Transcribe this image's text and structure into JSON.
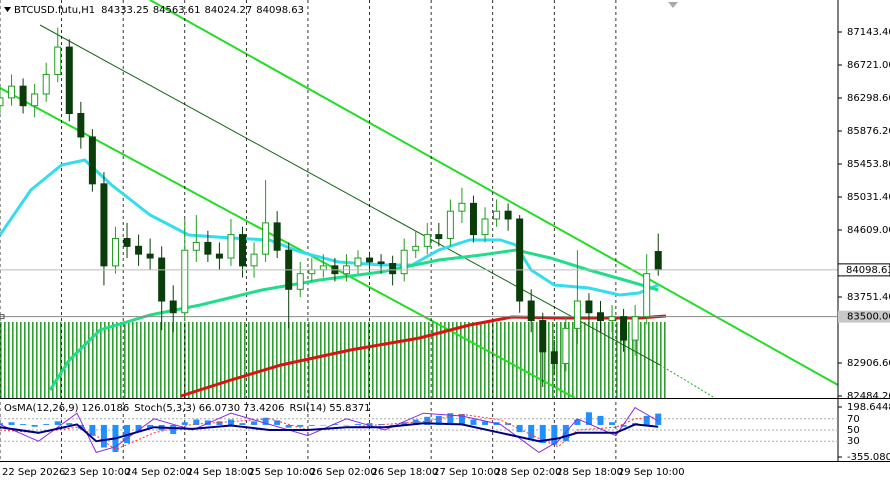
{
  "chart_data": {
    "type": "candlestick",
    "symbol": "BTCUSD.futu,H1",
    "x": [
      0,
      3,
      6,
      9,
      12,
      15,
      18,
      21,
      24,
      27,
      30,
      33,
      36,
      39,
      42,
      45,
      48,
      51,
      54,
      57,
      60,
      63,
      66,
      69,
      72,
      75,
      78,
      81,
      84,
      87,
      90,
      93,
      96,
      99,
      102,
      105,
      108,
      111,
      114,
      117,
      120,
      123,
      126,
      129,
      132,
      135,
      138,
      141,
      144,
      147,
      150,
      153,
      156,
      159,
      162,
      165,
      168,
      171
    ],
    "open": [
      86200,
      86300,
      86450,
      86200,
      86350,
      86600,
      86950,
      86100,
      85800,
      85200,
      84150,
      84500,
      84400,
      84300,
      84250,
      83700,
      83550,
      84350,
      84450,
      84300,
      84250,
      84550,
      84150,
      84300,
      84700,
      84350,
      83850,
      84050,
      84100,
      84150,
      84050,
      84150,
      84250,
      84200,
      84180,
      84050,
      84350,
      84400,
      84550,
      84500,
      84850,
      84950,
      84550,
      84750,
      84850,
      84750,
      83700,
      83450,
      83050,
      82900,
      83350,
      83700,
      83550,
      83450,
      83500,
      83200,
      83500,
      84333.25
    ],
    "high": [
      86450,
      86600,
      86550,
      86480,
      86750,
      87200,
      87050,
      86250,
      85900,
      85350,
      84650,
      84700,
      84550,
      84500,
      84400,
      83900,
      84750,
      84800,
      84600,
      84450,
      84750,
      84650,
      84450,
      85250,
      84850,
      84450,
      84200,
      84250,
      84300,
      84250,
      84300,
      84350,
      84330,
      84300,
      84280,
      84500,
      84600,
      84700,
      84700,
      85000,
      85150,
      85050,
      84900,
      85000,
      84950,
      84800,
      83850,
      83550,
      83200,
      83500,
      84350,
      83800,
      83700,
      83650,
      83600,
      83650,
      84300,
      84563.61
    ],
    "low": [
      86100,
      86200,
      86100,
      86050,
      86250,
      86500,
      86000,
      85650,
      85100,
      83900,
      84050,
      84250,
      84150,
      84100,
      83330,
      83300,
      83450,
      84200,
      84200,
      84100,
      84150,
      84000,
      84000,
      84200,
      84250,
      83350,
      83750,
      83950,
      84000,
      83950,
      83950,
      84050,
      84100,
      84050,
      83900,
      83950,
      84250,
      84300,
      84400,
      84400,
      84700,
      84450,
      84450,
      84650,
      84600,
      83550,
      83300,
      82600,
      82750,
      82800,
      83150,
      83400,
      83300,
      83300,
      83050,
      83000,
      83400,
      84024.27
    ],
    "close": [
      86300,
      86450,
      86200,
      86350,
      86600,
      86950,
      86100,
      85800,
      85200,
      84150,
      84500,
      84400,
      84300,
      84250,
      83700,
      83550,
      84350,
      84450,
      84300,
      84250,
      84550,
      84150,
      84300,
      84700,
      84350,
      83850,
      84050,
      84100,
      84150,
      84050,
      84150,
      84250,
      84200,
      84180,
      84050,
      84350,
      84400,
      84550,
      84500,
      84850,
      84950,
      84550,
      84750,
      84850,
      84750,
      83700,
      83450,
      83050,
      82900,
      83350,
      83700,
      83550,
      83450,
      83500,
      83200,
      83500,
      84050,
      84098.63
    ],
    "bull_color": "#1f9e1f",
    "bear_color": "#0b3d0b",
    "xlim": [
      0,
      217.7
    ],
    "xticks": [
      {
        "value": 0,
        "label": "22 Sep 2026"
      },
      {
        "value": 16,
        "label": "23 Sep 10:00"
      },
      {
        "value": 32,
        "label": "24 Sep 02:00"
      },
      {
        "value": 48,
        "label": "24 Sep 18:00"
      },
      {
        "value": 64,
        "label": "25 Sep 10:00"
      },
      {
        "value": 80,
        "label": "26 Sep 02:00"
      },
      {
        "value": 96,
        "label": "26 Sep 18:00"
      },
      {
        "value": 112,
        "label": "27 Sep 10:00"
      },
      {
        "value": 128,
        "label": "28 Sep 02:00"
      },
      {
        "value": 144,
        "label": "28 Sep 18:00"
      },
      {
        "value": 160,
        "label": "29 Sep 10:00"
      }
    ],
    "ylim": [
      82458.6,
      87553
    ],
    "yticks": [
      {
        "value": 87143.4,
        "label": "87143.40"
      },
      {
        "value": 86721,
        "label": "86721.00"
      },
      {
        "value": 86298.6,
        "label": "86298.60"
      },
      {
        "value": 85876.2,
        "label": "85876.20"
      },
      {
        "value": 85453.8,
        "label": "85453.80"
      },
      {
        "value": 85031.4,
        "label": "85031.40"
      },
      {
        "value": 84609,
        "label": "84609.00"
      },
      {
        "value": 83751.4,
        "label": "83751.40"
      },
      {
        "value": 82906.6,
        "label": "82906.60"
      },
      {
        "value": 82484.2,
        "label": "82484.20"
      }
    ],
    "grid": "vertical",
    "level": {
      "value": 83500,
      "label": "83500.00"
    },
    "moving_averages": [
      {
        "color": "#33ddee",
        "x": [
          0,
          8,
          16,
          22,
          29,
          39,
          49,
          60,
          70,
          78,
          88,
          99,
          107,
          114,
          122,
          130,
          134,
          138,
          144,
          153,
          161,
          166,
          171
        ],
        "values": [
          84545,
          85121,
          85441,
          85505,
          85185,
          84801,
          84545,
          84507,
          84481,
          84327,
          84199,
          84161,
          84161,
          84353,
          84481,
          84481,
          84417,
          84097,
          83905,
          83866,
          83777,
          83802,
          83905
        ]
      },
      {
        "color": "#22dd88",
        "x": [
          13,
          18,
          26,
          39,
          52,
          68,
          83,
          99,
          114,
          125,
          134,
          143,
          153,
          164,
          171
        ],
        "values": [
          82561,
          82945,
          83329,
          83521,
          83649,
          83841,
          83969,
          84071,
          84225,
          84289,
          84353,
          84251,
          84097,
          83943,
          83841
        ]
      },
      {
        "color": "#dd1111",
        "x": [
          47,
          60,
          73,
          91,
          109,
          122,
          133,
          146,
          156,
          166,
          173
        ],
        "values": [
          82484,
          82689,
          82881,
          83073,
          83227,
          83393,
          83495,
          83483,
          83483,
          83483,
          83508
        ]
      }
    ],
    "oscillator": {
      "ylim": [
        -399.38,
        276.17
      ],
      "yticks": [
        {
          "value": 198.6448,
          "label": "198.6448"
        },
        {
          "value": -355.0804,
          "label": "-355.0804"
        }
      ],
      "level_lim": [
        0,
        100
      ],
      "level_ticks": [
        70,
        50,
        30
      ],
      "osma": {
        "name": "OsMA(12,26,9)",
        "color": "#1e90ff",
        "values": [
          20,
          30,
          10,
          -20,
          10,
          40,
          20,
          -40,
          -120,
          -250,
          -300,
          -200,
          -80,
          -40,
          -60,
          -100,
          30,
          60,
          50,
          40,
          60,
          20,
          40,
          80,
          50,
          -30,
          -20,
          -10,
          0,
          10,
          0,
          10,
          20,
          10,
          -10,
          30,
          60,
          90,
          100,
          130,
          120,
          60,
          40,
          30,
          20,
          -80,
          -150,
          -200,
          -220,
          -180,
          60,
          140,
          100,
          30,
          -20,
          20,
          100,
          126.0186
        ]
      },
      "stoch": {
        "name": "Stoch(5,3,3)",
        "x": [
          0,
          10,
          20,
          25,
          30,
          40,
          50,
          60,
          70,
          80,
          90,
          100,
          110,
          120,
          130,
          140,
          145,
          150,
          160,
          165,
          171
        ],
        "main": [
          60,
          30,
          80,
          10,
          20,
          70,
          50,
          80,
          60,
          40,
          70,
          50,
          80,
          75,
          60,
          10,
          30,
          70,
          40,
          90,
          66.073
        ],
        "main_label": "66.0730",
        "signal": [
          50,
          45,
          55,
          40,
          15,
          45,
          60,
          65,
          70,
          50,
          55,
          60,
          65,
          78,
          68,
          35,
          20,
          50,
          55,
          70,
          73.4206
        ],
        "signal_label": "73.4206",
        "main_color": "#8a2be2",
        "signal_color": "#ff3030"
      },
      "rsi": {
        "name": "RSI(14)",
        "color": "#000080",
        "x": [
          0,
          10,
          20,
          25,
          30,
          40,
          50,
          60,
          70,
          80,
          90,
          100,
          110,
          120,
          130,
          140,
          145,
          150,
          160,
          165,
          171
        ],
        "values": [
          55,
          45,
          60,
          30,
          35,
          55,
          52,
          58,
          50,
          50,
          55,
          55,
          62,
          60,
          45,
          30,
          35,
          45,
          45,
          60,
          55.8371
        ]
      }
    }
  }
}
